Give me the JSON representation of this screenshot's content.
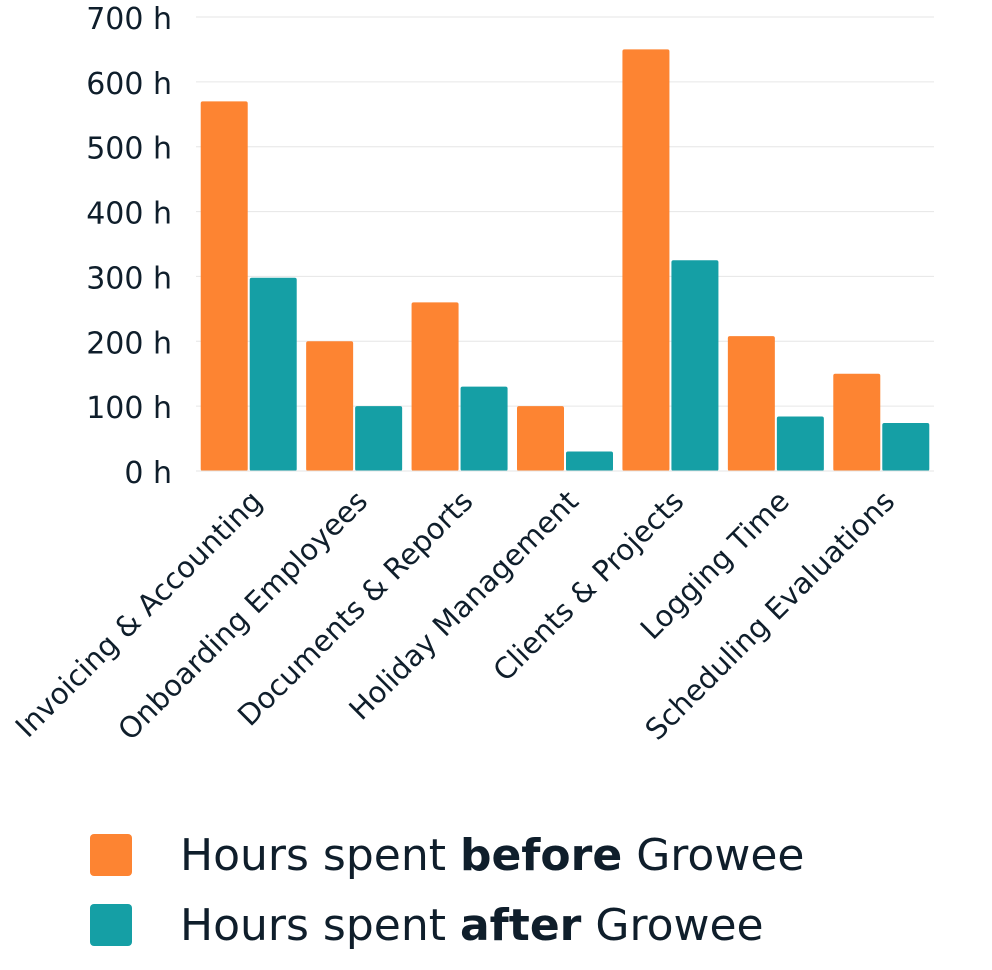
{
  "colors": {
    "before": "#fd8432",
    "after": "#159fa5",
    "grid": "#e6e6e6",
    "text": "#0f1e2b"
  },
  "legend": [
    {
      "prefix": "Hours spent ",
      "bold": "before",
      "suffix": " Growee",
      "color": "#fd8432"
    },
    {
      "prefix": "Hours spent ",
      "bold": "after",
      "suffix": " Growee",
      "color": "#159fa5"
    }
  ],
  "chart_data": {
    "type": "bar",
    "categories": [
      "Invoicing & Accounting",
      "Onboarding Employees",
      "Documents & Reports",
      "Holiday Management",
      "Clients & Projects",
      "Logging Time",
      "Scheduling Evaluations"
    ],
    "series": [
      {
        "name": "Hours spent before Growee",
        "values": [
          570,
          200,
          260,
          100,
          650,
          208,
          150
        ]
      },
      {
        "name": "Hours spent after Growee",
        "values": [
          298,
          100,
          130,
          30,
          325,
          84,
          74
        ]
      }
    ],
    "yticks": [
      "0 h",
      "100 h",
      "200 h",
      "300 h",
      "400 h",
      "500 h",
      "600 h",
      "700 h"
    ],
    "ylim": [
      0,
      700
    ],
    "grid": true,
    "legend_position": "bottom"
  }
}
